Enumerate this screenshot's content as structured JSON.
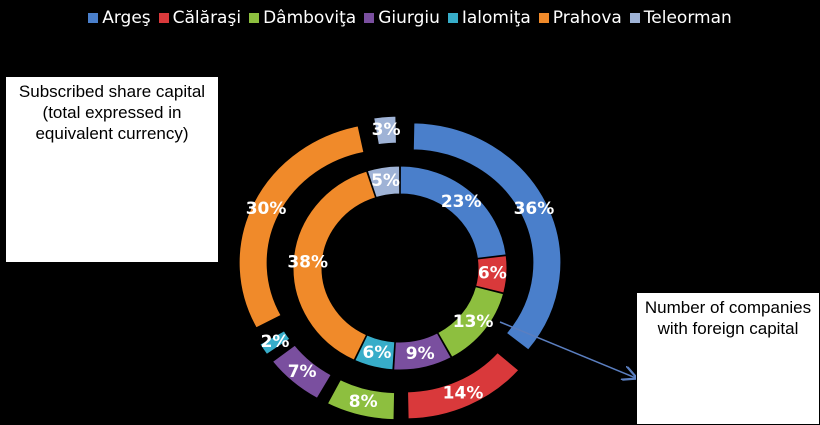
{
  "chart_data": {
    "type": "doughnut",
    "categories": [
      "Argeş",
      "Călăraşi",
      "Dâmboviţa",
      "Giurgiu",
      "Ialomiţa",
      "Prahova",
      "Teleorman"
    ],
    "colors": [
      "#4a7fcb",
      "#d9393b",
      "#8dbf3f",
      "#7a4f9f",
      "#37adc9",
      "#f08a2a",
      "#9fb3d6"
    ],
    "series": [
      {
        "name": "Subscribed share capital (total expressed in equivalent currency)",
        "ring": "outer",
        "values": [
          36,
          14,
          8,
          7,
          2,
          30,
          3
        ],
        "value_labels": [
          "36%",
          "14%",
          "8%",
          "7%",
          "2%",
          "30%",
          "3%"
        ]
      },
      {
        "name": "Number of companies with foreign capital",
        "ring": "inner",
        "values": [
          23,
          6,
          13,
          9,
          6,
          38,
          5
        ],
        "value_labels": [
          "23%",
          "6%",
          "13%",
          "9%",
          "6%",
          "38%",
          "5%"
        ]
      }
    ],
    "legend": "top"
  }
}
